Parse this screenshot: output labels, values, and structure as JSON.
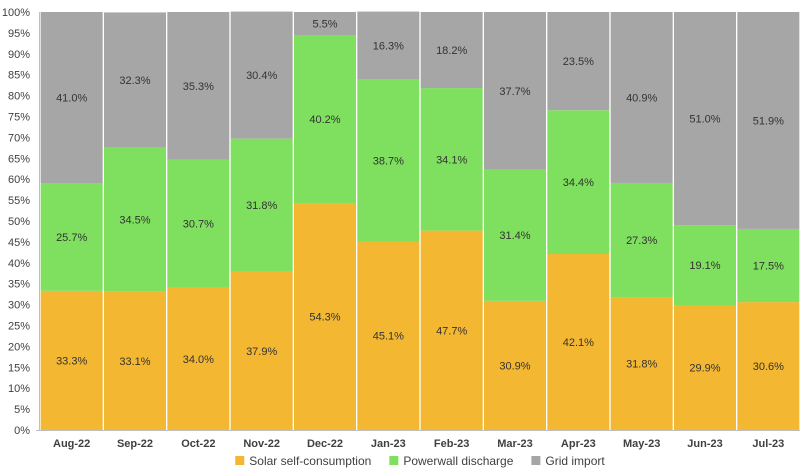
{
  "chart_data": {
    "type": "bar",
    "stacked": true,
    "percent": true,
    "categories": [
      "Aug-22",
      "Sep-22",
      "Oct-22",
      "Nov-22",
      "Dec-22",
      "Jan-23",
      "Feb-23",
      "Mar-23",
      "Apr-23",
      "May-23",
      "Jun-23",
      "Jul-23"
    ],
    "series": [
      {
        "name": "Solar self-consumption",
        "color": "#F4B731",
        "values": [
          33.3,
          33.1,
          34.0,
          37.9,
          54.3,
          45.1,
          47.7,
          30.9,
          42.1,
          31.8,
          29.9,
          30.6
        ],
        "labels": [
          "33.3%",
          "33.1%",
          "34.0%",
          "37.9%",
          "54.3%",
          "45.1%",
          "47.7%",
          "30.9%",
          "42.1%",
          "31.8%",
          "29.9%",
          "30.6%"
        ]
      },
      {
        "name": "Powerwall discharge",
        "color": "#7FDF5F",
        "values": [
          25.7,
          34.5,
          30.7,
          31.8,
          40.2,
          38.7,
          34.1,
          31.4,
          34.4,
          27.3,
          19.1,
          17.5
        ],
        "labels": [
          "25.7%",
          "34.5%",
          "30.7%",
          "31.8%",
          "40.2%",
          "38.7%",
          "34.1%",
          "31.4%",
          "34.4%",
          "27.3%",
          "19.1%",
          "17.5%"
        ]
      },
      {
        "name": "Grid import",
        "color": "#A6A6A6",
        "values": [
          41.0,
          32.3,
          35.3,
          30.4,
          5.5,
          16.3,
          18.2,
          37.7,
          23.5,
          40.9,
          51.0,
          51.9
        ],
        "labels": [
          "41.0%",
          "32.3%",
          "35.3%",
          "30.4%",
          "5.5%",
          "16.3%",
          "18.2%",
          "37.7%",
          "23.5%",
          "40.9%",
          "51.0%",
          "51.9%"
        ]
      }
    ],
    "y_ticks": [
      "0%",
      "5%",
      "10%",
      "15%",
      "20%",
      "25%",
      "30%",
      "35%",
      "40%",
      "45%",
      "50%",
      "55%",
      "60%",
      "65%",
      "70%",
      "75%",
      "80%",
      "85%",
      "90%",
      "95%",
      "100%"
    ],
    "ylim": [
      0,
      100
    ],
    "grid": false,
    "legend_position": "bottom",
    "title": "",
    "xlabel": "",
    "ylabel": ""
  }
}
